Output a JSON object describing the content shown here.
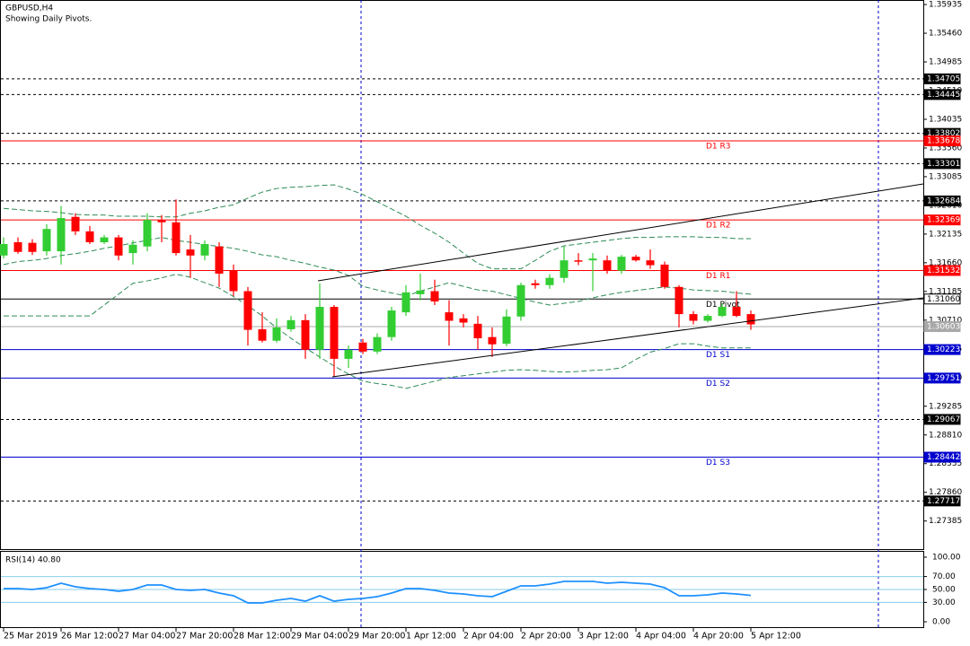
{
  "chart_data": {
    "type": "candlestick",
    "title": "GBPUSD,H4",
    "subtitle": "Showing Daily Pivots.",
    "categories": [
      "25 Mar 2019",
      null,
      null,
      null,
      "26 Mar 12:00",
      null,
      null,
      null,
      "27 Mar 04:00",
      null,
      null,
      null,
      "27 Mar 20:00",
      null,
      null,
      null,
      "28 Mar 12:00",
      null,
      null,
      null,
      "29 Mar 04:00",
      null,
      null,
      null,
      "29 Mar 20:00",
      null,
      null,
      null,
      "1 Apr 12:00",
      null,
      null,
      null,
      "2 Apr 04:00",
      null,
      null,
      null,
      "2 Apr 20:00",
      null,
      null,
      null,
      "3 Apr 12:00",
      null,
      null,
      null,
      "4 Apr 04:00",
      null,
      null,
      null,
      "4 Apr 20:00",
      null,
      null,
      null,
      "5 Apr 12:00"
    ],
    "open": [
      1.3178,
      1.32,
      1.3199,
      1.3185,
      1.3185,
      1.3242,
      1.3218,
      1.32,
      1.3208,
      1.3182,
      1.3193,
      1.3237,
      1.3233,
      1.3188,
      1.3178,
      1.3193,
      1.3153,
      1.3119,
      1.3056,
      1.3037,
      1.3056,
      1.3071,
      1.3022,
      1.3093,
      1.3007,
      1.3034,
      1.3019,
      1.3043,
      1.3084,
      1.3114,
      1.3119,
      1.3084,
      1.3074,
      1.3065,
      1.3043,
      1.3032,
      1.3077,
      1.3132,
      1.3129,
      1.3141,
      1.317,
      1.317,
      1.317,
      1.3153,
      1.3176,
      1.317,
      1.3163,
      1.3126,
      1.3081,
      1.307,
      1.3078,
      1.3093,
      1.3081
    ],
    "high": [
      1.3208,
      1.3208,
      1.3205,
      1.323,
      1.326,
      1.3248,
      1.3227,
      1.3212,
      1.3212,
      1.3203,
      1.3248,
      1.3245,
      1.3271,
      1.3212,
      1.3203,
      1.32,
      1.3163,
      1.3126,
      1.3084,
      1.3074,
      1.3078,
      1.3081,
      1.3132,
      1.3096,
      1.3029,
      1.304,
      1.3049,
      1.3093,
      1.3129,
      1.3148,
      1.3138,
      1.3104,
      1.3081,
      1.3078,
      1.3059,
      1.3089,
      1.3133,
      1.3138,
      1.3147,
      1.3193,
      1.3182,
      1.3182,
      1.3178,
      1.3179,
      1.3179,
      1.3188,
      1.3168,
      1.3129,
      1.3086,
      1.3081,
      1.3099,
      1.3119,
      1.3087
    ],
    "low": [
      1.3173,
      1.3181,
      1.3179,
      1.3178,
      1.3163,
      1.3212,
      1.3197,
      1.3197,
      1.317,
      1.3163,
      1.3185,
      1.32,
      1.3178,
      1.3141,
      1.317,
      1.3126,
      1.3111,
      1.3029,
      1.3034,
      1.3034,
      1.3052,
      1.3007,
      1.3007,
      1.2978,
      1.2992,
      1.3015,
      1.3015,
      1.3037,
      1.3078,
      1.3104,
      1.3096,
      1.3029,
      1.3059,
      1.3022,
      1.301,
      1.3028,
      1.307,
      1.3123,
      1.3123,
      1.3133,
      1.3162,
      1.3119,
      1.3148,
      1.3148,
      1.3168,
      1.3156,
      1.3123,
      1.3059,
      1.3064,
      1.3067,
      1.3076,
      1.3076,
      1.3055
    ],
    "close": [
      1.3197,
      1.3184,
      1.3184,
      1.3222,
      1.324,
      1.3218,
      1.32,
      1.3208,
      1.3178,
      1.3196,
      1.3237,
      1.3233,
      1.3182,
      1.3178,
      1.3197,
      1.3148,
      1.3119,
      1.3055,
      1.3037,
      1.3059,
      1.3071,
      1.3022,
      1.3093,
      1.3007,
      1.3022,
      1.3019,
      1.3043,
      1.3087,
      1.3117,
      1.312,
      1.3102,
      1.307,
      1.3067,
      1.3041,
      1.3031,
      1.3077,
      1.3129,
      1.3129,
      1.3141,
      1.317,
      1.3168,
      1.3173,
      1.3153,
      1.3176,
      1.317,
      1.3162,
      1.3126,
      1.3081,
      1.307,
      1.3078,
      1.3093,
      1.3078,
      1.3064
    ],
    "up_color": "#32cd32",
    "down_color": "#ff0000",
    "bands": {
      "color": "#2e8b57",
      "upper": [
        1.3256,
        1.3254,
        1.3252,
        1.3251,
        1.3249,
        1.3246,
        1.3245,
        1.3245,
        1.3243,
        1.3243,
        1.3243,
        1.3242,
        1.3242,
        1.3248,
        1.3252,
        1.3258,
        1.3262,
        1.3273,
        1.3283,
        1.3289,
        1.3291,
        1.3292,
        1.3294,
        1.3295,
        1.3288,
        1.3279,
        1.3267,
        1.3255,
        1.3243,
        1.3228,
        1.3215,
        1.32,
        1.3182,
        1.3165,
        1.3156,
        1.3156,
        1.3156,
        1.317,
        1.3185,
        1.3194,
        1.3197,
        1.32,
        1.3203,
        1.3206,
        1.3208,
        1.3208,
        1.3209,
        1.3209,
        1.3209,
        1.3208,
        1.3208,
        1.3206,
        1.3206
      ],
      "middle": [
        1.3163,
        1.3168,
        1.317,
        1.3173,
        1.3178,
        1.3181,
        1.3185,
        1.319,
        1.3194,
        1.3199,
        1.3203,
        1.3208,
        1.3203,
        1.32,
        1.3196,
        1.3193,
        1.319,
        1.3185,
        1.3179,
        1.3176,
        1.317,
        1.3165,
        1.3159,
        1.3154,
        1.3145,
        1.3127,
        1.3121,
        1.3116,
        1.3111,
        1.3119,
        1.3126,
        1.3133,
        1.3127,
        1.3121,
        1.3119,
        1.3113,
        1.3107,
        1.3101,
        1.3096,
        1.3099,
        1.3102,
        1.3108,
        1.3113,
        1.3117,
        1.312,
        1.3123,
        1.3126,
        1.3124,
        1.3121,
        1.312,
        1.3119,
        1.3116,
        1.3114
      ],
      "lower": [
        1.3078,
        1.3078,
        1.3078,
        1.3078,
        1.3078,
        1.3078,
        1.3078,
        1.3096,
        1.3114,
        1.3132,
        1.3136,
        1.3141,
        1.3147,
        1.3142,
        1.3133,
        1.3124,
        1.311,
        1.3095,
        1.3078,
        1.3058,
        1.3041,
        1.3025,
        1.301,
        1.2995,
        1.2982,
        1.297,
        1.2966,
        1.2963,
        1.2958,
        1.2964,
        1.297,
        1.2976,
        1.2979,
        1.2982,
        1.2985,
        1.2988,
        1.2989,
        1.2988,
        1.2986,
        1.2985,
        1.2986,
        1.2988,
        1.2989,
        1.2992,
        1.3006,
        1.3018,
        1.3024,
        1.3032,
        1.3032,
        1.3028,
        1.3025,
        1.3025,
        1.3025
      ]
    },
    "ylim": [
      1.2692,
      1.3601
    ],
    "yticks": [
      1.35935,
      {
        "value": 1.3546,
        "label": "1.35460"
      },
      1.34985,
      {
        "value": 1.3451,
        "label": "1.34510"
      },
      1.34035,
      {
        "value": 1.3356,
        "label": "1.33560"
      },
      1.33085,
      {
        "value": 1.3261,
        "label": "1.32610"
      },
      1.32135,
      {
        "value": 1.3166,
        "label": "1.31660"
      },
      1.31185,
      {
        "value": 1.3071,
        "label": "1.30710"
      },
      1.30235,
      {
        "value": 1.2976,
        "label": "1.29760"
      },
      1.29285,
      {
        "value": 1.2881,
        "label": "1.28810"
      },
      1.28335,
      {
        "value": 1.2786,
        "label": "1.27860"
      },
      1.27385
    ],
    "levels": [
      {
        "value": 1.34705,
        "color": "#000000",
        "dash": true
      },
      {
        "value": 1.34445,
        "color": "#000000",
        "dash": true
      },
      {
        "value": 1.33802,
        "color": "#000000",
        "dash": true
      },
      {
        "value": 1.33678,
        "color": "#ff0000",
        "dash": false,
        "name": "D1 R3"
      },
      {
        "value": 1.33301,
        "color": "#000000",
        "dash": true
      },
      {
        "value": 1.32684,
        "color": "#000000",
        "dash": true
      },
      {
        "value": 1.32369,
        "color": "#ff0000",
        "dash": false,
        "name": "D1 R2"
      },
      {
        "value": 1.31532,
        "color": "#ff0000",
        "dash": false,
        "name": "D1 R1"
      },
      {
        "value": 1.3106,
        "label": "1.31060",
        "color": "#000000",
        "dash": false,
        "name": "D1 Pivot",
        "box_fill": "#ffffff"
      },
      {
        "value": 1.30603,
        "color": "#a9a9a9",
        "dash": false
      },
      {
        "value": 1.30223,
        "color": "#0000cd",
        "dash": false,
        "name": "D1 S1"
      },
      {
        "value": 1.29751,
        "color": "#0000cd",
        "dash": false,
        "name": "D1 S2"
      },
      {
        "value": 1.29067,
        "color": "#000000",
        "dash": true
      },
      {
        "value": 1.28442,
        "color": "#0000cd",
        "dash": false,
        "name": "D1 S3"
      },
      {
        "value": 1.27717,
        "color": "#000000",
        "dash": true
      }
    ],
    "rsi": {
      "title": "RSI(14) 40.80",
      "color": "#1e90ff",
      "values": [
        51.4,
        51.4,
        50.0,
        52.8,
        59.7,
        54.2,
        51.4,
        50.0,
        47.2,
        50.0,
        56.9,
        56.9,
        50.0,
        48.6,
        50.0,
        44.4,
        40.3,
        29.2,
        29.2,
        33.3,
        36.1,
        31.9,
        40.3,
        31.9,
        34.7,
        36.1,
        38.9,
        44.4,
        51.4,
        51.4,
        48.6,
        44.4,
        43.1,
        40.3,
        38.9,
        47.2,
        55.6,
        55.6,
        58.3,
        62.5,
        62.5,
        62.5,
        59.7,
        61.1,
        59.7,
        58.3,
        52.8,
        40.3,
        40.3,
        41.7,
        44.4,
        43.1,
        40.8
      ],
      "ylim": [
        -9.7,
        109.7
      ],
      "yticks": [
        {
          "value": 100,
          "label": "100.00"
        },
        {
          "value": 70,
          "label": "70.00"
        },
        {
          "value": 50,
          "label": "50.00"
        },
        {
          "value": 30,
          "label": "30.00"
        },
        {
          "value": 0,
          "label": "0.00"
        }
      ],
      "levels": [
        70,
        50,
        30
      ],
      "level_color": "#87ceeb"
    }
  }
}
